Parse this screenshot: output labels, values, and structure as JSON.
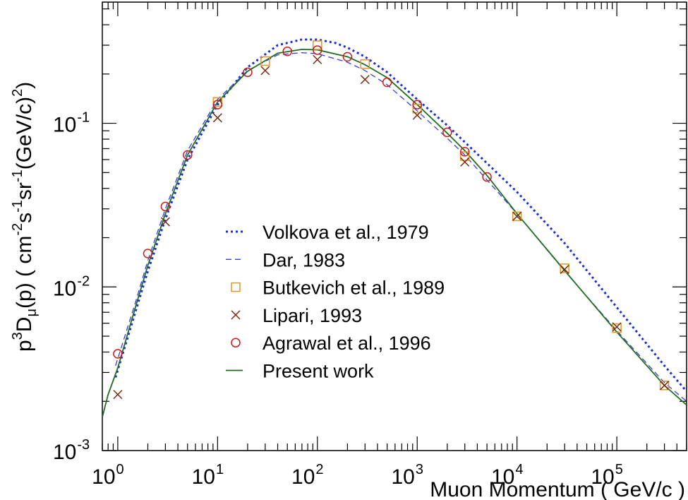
{
  "chart_data": {
    "type": "scatter",
    "xlabel": "Muon Momentum ( GeV/c )",
    "ylabel": {
      "parts": [
        "p",
        "3",
        "D",
        "μ",
        "(p) ( cm",
        "-2",
        "s",
        "-1",
        "sr",
        "-1",
        "(GeV/c)",
        "2",
        ")"
      ]
    },
    "x_scale": "log",
    "y_scale": "log",
    "xlim": [
      0.7,
      500000
    ],
    "ylim": [
      0.001,
      0.55
    ],
    "x_ticks": [
      {
        "value": 1,
        "base": "10",
        "exp": "0"
      },
      {
        "value": 10,
        "base": "10",
        "exp": "1"
      },
      {
        "value": 100,
        "base": "10",
        "exp": "2"
      },
      {
        "value": 1000,
        "base": "10",
        "exp": "3"
      },
      {
        "value": 10000,
        "base": "10",
        "exp": "4"
      },
      {
        "value": 100000,
        "base": "10",
        "exp": "5"
      }
    ],
    "y_ticks": [
      {
        "value": 0.001,
        "base": "10",
        "exp": "-3"
      },
      {
        "value": 0.01,
        "base": "10",
        "exp": "-2"
      },
      {
        "value": 0.1,
        "base": "10",
        "exp": "-1"
      }
    ],
    "grid": false,
    "legend_position": "lower-left",
    "series": [
      {
        "name": "Volkova et al., 1979",
        "style": "dotted-line",
        "color": "#1a2fd6",
        "x": [
          0.95,
          1.5,
          2,
          3,
          5,
          10,
          20,
          40,
          70,
          100,
          150,
          200,
          300,
          500,
          1000,
          2000,
          5000,
          10000,
          30000,
          100000,
          300000,
          500000
        ],
        "y": [
          0.0028,
          0.007,
          0.0125,
          0.026,
          0.06,
          0.13,
          0.22,
          0.3,
          0.325,
          0.325,
          0.31,
          0.29,
          0.255,
          0.205,
          0.14,
          0.097,
          0.057,
          0.038,
          0.0185,
          0.0075,
          0.0033,
          0.0023
        ]
      },
      {
        "name": "Dar, 1983",
        "style": "dashed-line",
        "color": "#3a3ae8",
        "x": [
          0.95,
          1.5,
          2,
          3,
          5,
          10,
          20,
          40,
          70,
          100,
          200,
          300,
          500,
          1000,
          2000,
          3000,
          10000,
          30000,
          100000,
          300000,
          500000
        ],
        "y": [
          0.0033,
          0.008,
          0.0145,
          0.03,
          0.068,
          0.14,
          0.21,
          0.262,
          0.27,
          0.266,
          0.236,
          0.21,
          0.172,
          0.119,
          0.081,
          0.064,
          0.028,
          0.0125,
          0.0054,
          0.0026,
          0.002
        ]
      },
      {
        "name": "Butkevich et al., 1989",
        "style": "open-square",
        "color": "#e8941c",
        "x": [
          10,
          30,
          100,
          300,
          1000,
          3000,
          10000,
          30000,
          100000,
          300000
        ],
        "y": [
          0.135,
          0.24,
          0.3,
          0.23,
          0.123,
          0.063,
          0.027,
          0.013,
          0.0056,
          0.0025
        ]
      },
      {
        "name": "Lipari, 1993",
        "style": "cross",
        "color": "#7a2a0a",
        "x": [
          1,
          3,
          10,
          30,
          100,
          300,
          1000,
          3000,
          10000,
          30000,
          100000,
          300000
        ],
        "y": [
          0.0022,
          0.025,
          0.108,
          0.21,
          0.245,
          0.185,
          0.112,
          0.058,
          0.027,
          0.0128,
          0.0057,
          0.0025
        ]
      },
      {
        "name": "Agrawal et al., 1996",
        "style": "open-circle",
        "color": "#d01818",
        "x": [
          1,
          2,
          3,
          5,
          10,
          20,
          50,
          100,
          200,
          500,
          1000,
          2000,
          3000,
          5000
        ],
        "y": [
          0.0039,
          0.016,
          0.031,
          0.064,
          0.13,
          0.205,
          0.275,
          0.28,
          0.255,
          0.178,
          0.13,
          0.088,
          0.067,
          0.047
        ]
      },
      {
        "name": "Present work",
        "style": "solid-line",
        "color": "#1e6e1e",
        "x": [
          0.7,
          0.8,
          1,
          1.5,
          2,
          3,
          5,
          10,
          20,
          40,
          70,
          100,
          200,
          300,
          500,
          1000,
          2000,
          3000,
          5000,
          10000,
          30000,
          100000,
          300000,
          500000
        ],
        "y": [
          0.0016,
          0.0022,
          0.0032,
          0.0075,
          0.0135,
          0.028,
          0.064,
          0.135,
          0.208,
          0.268,
          0.283,
          0.281,
          0.255,
          0.228,
          0.19,
          0.13,
          0.087,
          0.068,
          0.048,
          0.028,
          0.0126,
          0.0053,
          0.0025,
          0.0019
        ]
      }
    ]
  }
}
